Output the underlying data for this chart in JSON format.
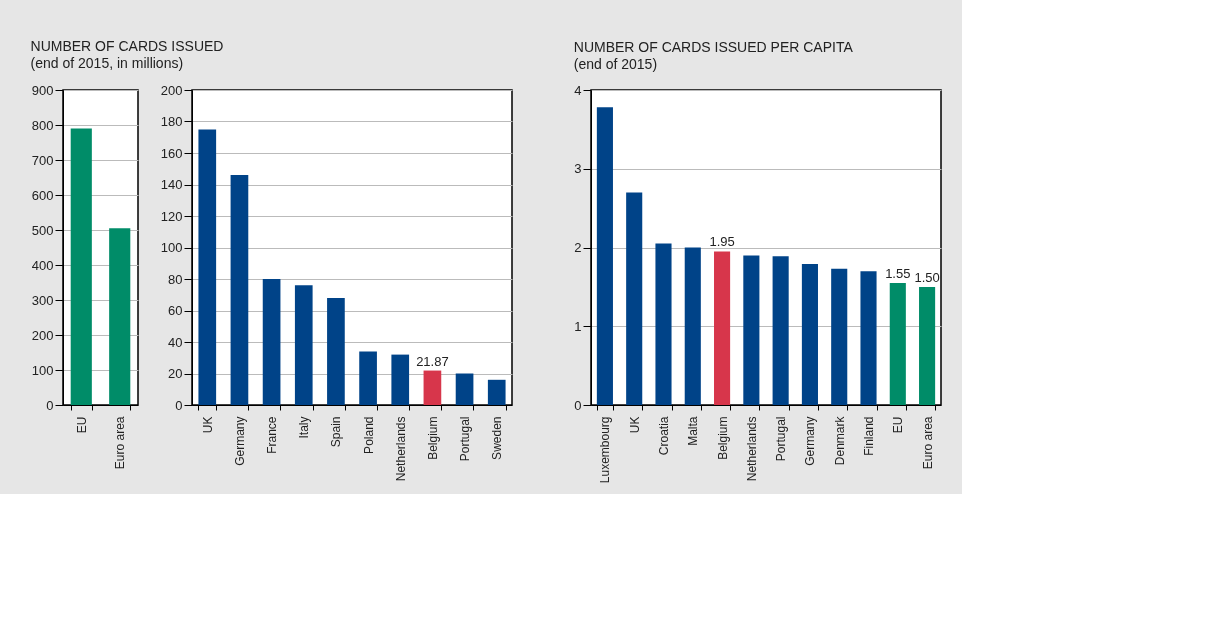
{
  "chart_data": [
    {
      "type": "bar",
      "title": "NUMBER OF CARDS ISSUED",
      "subtitle": "(end of 2015, in millions)",
      "categories": [
        "EU",
        "Euro area"
      ],
      "values": [
        790,
        505
      ],
      "colors": [
        "#008c68",
        "#008c68"
      ],
      "ylim": [
        0,
        900
      ],
      "yticks": [
        0,
        100,
        200,
        300,
        400,
        500,
        600,
        700,
        800,
        900
      ],
      "grid": "y"
    },
    {
      "type": "bar",
      "categories": [
        "UK",
        "Germany",
        "France",
        "Italy",
        "Spain",
        "Poland",
        "Netherlands",
        "Belgium",
        "Portugal",
        "Sweden"
      ],
      "values": [
        175,
        146,
        80,
        76,
        68,
        34,
        32,
        21.87,
        20,
        16
      ],
      "colors": [
        "#004388",
        "#004388",
        "#004388",
        "#004388",
        "#004388",
        "#004388",
        "#004388",
        "#d7364b",
        "#004388",
        "#004388"
      ],
      "value_labels": [
        null,
        null,
        null,
        null,
        null,
        null,
        null,
        "21.87",
        null,
        null
      ],
      "ylim": [
        0,
        200
      ],
      "yticks": [
        0,
        20,
        40,
        60,
        80,
        100,
        120,
        140,
        160,
        180,
        200
      ],
      "grid": "y"
    },
    {
      "type": "bar",
      "title": "NUMBER OF CARDS ISSUED PER CAPITA",
      "subtitle": "(end of 2015)",
      "categories": [
        "Luxembourg",
        "UK",
        "Croatia",
        "Malta",
        "Belgium",
        "Netherlands",
        "Portugal",
        "Germany",
        "Denmark",
        "Finland",
        "EU",
        "Euro area"
      ],
      "values": [
        3.78,
        2.7,
        2.05,
        2.0,
        1.95,
        1.9,
        1.89,
        1.79,
        1.73,
        1.7,
        1.55,
        1.5
      ],
      "colors": [
        "#004388",
        "#004388",
        "#004388",
        "#004388",
        "#d7364b",
        "#004388",
        "#004388",
        "#004388",
        "#004388",
        "#004388",
        "#008c68",
        "#008c68"
      ],
      "value_labels": [
        null,
        null,
        null,
        null,
        "1.95",
        null,
        null,
        null,
        null,
        null,
        "1.55",
        "1.50"
      ],
      "ylim": [
        0,
        4
      ],
      "yticks": [
        0,
        1,
        2,
        3,
        4
      ],
      "grid": "y"
    }
  ]
}
